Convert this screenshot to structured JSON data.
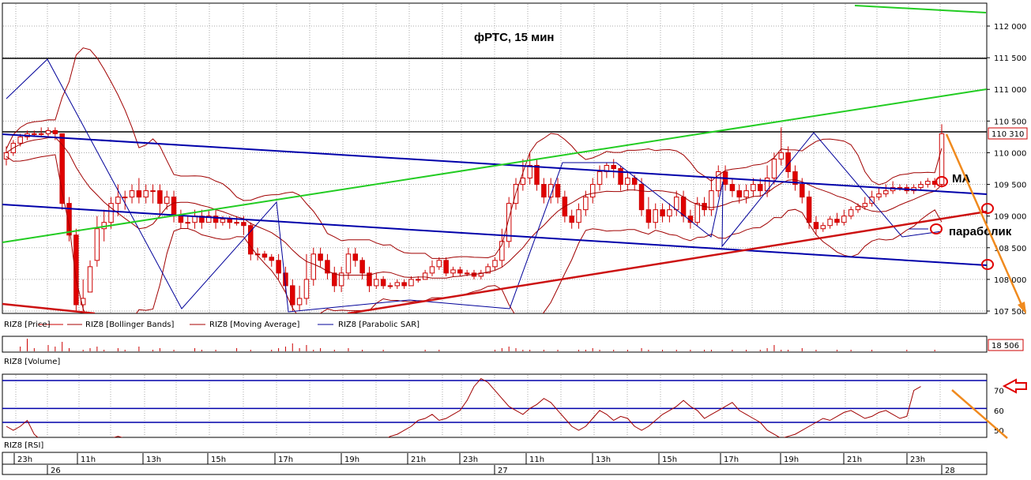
{
  "chart_data": {
    "type": "candlestick",
    "title": "фРТС, 15 мин",
    "price_panel": {
      "ylim": [
        107500,
        112250
      ],
      "y_ticks": [
        "112 000",
        "111 500",
        "111 000",
        "110 500",
        "110 000",
        "109 500",
        "109 000",
        "108 500",
        "108 000",
        "107 500"
      ],
      "last_price_label": "110 310",
      "legend": [
        {
          "name": "RIZ8 [Price]",
          "color": "#cc0000"
        },
        {
          "name": "RIZ8 [Bollinger Bands]",
          "color": "#a00000"
        },
        {
          "name": "RIZ8 [Moving Average]",
          "color": "#a00000"
        },
        {
          "name": "RIZ8 [Parabolic SAR]",
          "color": "#000099"
        }
      ],
      "horizontal_levels": [
        111490,
        110330
      ],
      "candles": [
        [
          109.9,
          110.0,
          109.8,
          110.1
        ],
        [
          110.0,
          110.15,
          109.95,
          110.2
        ],
        [
          110.15,
          110.25,
          110.1,
          110.3
        ],
        [
          110.25,
          110.3,
          110.2,
          110.35
        ],
        [
          110.3,
          110.3,
          110.25,
          110.35
        ],
        [
          110.3,
          110.3,
          110.25,
          110.4
        ],
        [
          110.3,
          110.35,
          110.25,
          110.4
        ],
        [
          110.35,
          110.3,
          110.2,
          110.4
        ],
        [
          110.3,
          109.2,
          109.1,
          110.3
        ],
        [
          109.2,
          108.7,
          108.6,
          109.3
        ],
        [
          108.7,
          107.6,
          107.5,
          108.8
        ],
        [
          107.6,
          107.7,
          107.5,
          108.0
        ],
        [
          107.8,
          108.2,
          107.8,
          108.3
        ],
        [
          108.3,
          108.8,
          108.2,
          109.0
        ],
        [
          108.8,
          108.9,
          108.6,
          109.1
        ],
        [
          108.9,
          109.2,
          108.8,
          109.3
        ],
        [
          109.2,
          109.3,
          109.0,
          109.5
        ],
        [
          109.3,
          109.3,
          109.1,
          109.4
        ],
        [
          109.3,
          109.4,
          109.2,
          109.5
        ],
        [
          109.4,
          109.3,
          109.2,
          109.6
        ],
        [
          109.3,
          109.4,
          109.2,
          109.5
        ],
        [
          109.4,
          109.4,
          109.2,
          109.5
        ],
        [
          109.4,
          109.2,
          109.0,
          109.5
        ],
        [
          109.2,
          109.3,
          109.1,
          109.4
        ],
        [
          109.3,
          109.0,
          108.9,
          109.4
        ],
        [
          109.0,
          108.9,
          108.8,
          109.1
        ],
        [
          108.9,
          108.9,
          108.8,
          109.0
        ],
        [
          108.9,
          109.0,
          108.8,
          109.1
        ],
        [
          109.0,
          108.9,
          108.8,
          109.1
        ],
        [
          108.9,
          109.0,
          108.9,
          109.1
        ],
        [
          109.0,
          108.9,
          108.8,
          109.1
        ],
        [
          108.9,
          108.95,
          108.85,
          109.0
        ],
        [
          108.95,
          108.9,
          108.8,
          109.0
        ],
        [
          108.9,
          108.9,
          108.85,
          109.0
        ],
        [
          108.9,
          108.85,
          108.7,
          109.0
        ],
        [
          108.85,
          108.4,
          108.3,
          108.9
        ],
        [
          108.4,
          108.4,
          108.3,
          108.5
        ],
        [
          108.4,
          108.35,
          108.3,
          108.45
        ],
        [
          108.35,
          108.3,
          108.2,
          108.4
        ],
        [
          108.3,
          108.1,
          108.0,
          108.4
        ],
        [
          108.1,
          107.9,
          107.8,
          108.2
        ],
        [
          107.9,
          107.6,
          107.5,
          108.0
        ],
        [
          107.6,
          107.7,
          107.5,
          107.9
        ],
        [
          107.7,
          108.0,
          107.6,
          108.4
        ],
        [
          108.0,
          108.4,
          107.9,
          108.5
        ],
        [
          108.4,
          108.3,
          108.2,
          108.5
        ],
        [
          108.3,
          108.1,
          108.0,
          108.4
        ],
        [
          108.1,
          107.9,
          107.8,
          108.2
        ],
        [
          107.9,
          108.1,
          107.8,
          108.2
        ],
        [
          108.1,
          108.4,
          108.0,
          108.5
        ],
        [
          108.4,
          108.3,
          108.2,
          108.5
        ],
        [
          108.3,
          108.1,
          108.0,
          108.35
        ],
        [
          108.1,
          107.9,
          107.8,
          108.2
        ],
        [
          107.9,
          108.0,
          107.85,
          108.1
        ],
        [
          108.0,
          107.9,
          107.85,
          108.05
        ],
        [
          107.9,
          107.9,
          107.85,
          107.95
        ],
        [
          107.9,
          107.95,
          107.85,
          108.0
        ],
        [
          107.95,
          107.9,
          107.85,
          108.0
        ],
        [
          107.9,
          108.0,
          107.9,
          108.05
        ],
        [
          108.0,
          108.0,
          107.95,
          108.05
        ],
        [
          108.0,
          108.1,
          108.0,
          108.15
        ],
        [
          108.1,
          108.2,
          108.05,
          108.3
        ],
        [
          108.2,
          108.3,
          108.15,
          108.35
        ],
        [
          108.3,
          108.1,
          108.05,
          108.35
        ],
        [
          108.1,
          108.15,
          108.05,
          108.2
        ],
        [
          108.15,
          108.1,
          108.05,
          108.2
        ],
        [
          108.1,
          108.1,
          108.05,
          108.15
        ],
        [
          108.1,
          108.05,
          108.0,
          108.15
        ],
        [
          108.05,
          108.1,
          108.0,
          108.15
        ],
        [
          108.1,
          108.2,
          108.1,
          108.25
        ],
        [
          108.2,
          108.3,
          108.15,
          108.35
        ],
        [
          108.3,
          108.6,
          108.2,
          108.8
        ],
        [
          108.6,
          109.2,
          108.5,
          109.3
        ],
        [
          109.2,
          109.5,
          109.1,
          109.6
        ],
        [
          109.5,
          109.6,
          109.4,
          109.9
        ],
        [
          109.6,
          109.8,
          109.5,
          110.0
        ],
        [
          109.8,
          109.5,
          109.4,
          109.9
        ],
        [
          109.5,
          109.3,
          109.2,
          109.6
        ],
        [
          109.3,
          109.5,
          109.2,
          109.6
        ],
        [
          109.5,
          109.3,
          109.2,
          109.6
        ],
        [
          109.3,
          109.0,
          108.9,
          109.4
        ],
        [
          109.0,
          108.9,
          108.8,
          109.1
        ],
        [
          108.9,
          109.1,
          108.8,
          109.2
        ],
        [
          109.1,
          109.3,
          109.0,
          109.4
        ],
        [
          109.3,
          109.5,
          109.2,
          109.6
        ],
        [
          109.5,
          109.7,
          109.4,
          109.8
        ],
        [
          109.7,
          109.8,
          109.6,
          109.85
        ],
        [
          109.8,
          109.75,
          109.6,
          109.9
        ],
        [
          109.75,
          109.5,
          109.4,
          109.8
        ],
        [
          109.5,
          109.6,
          109.4,
          109.7
        ],
        [
          109.6,
          109.5,
          109.4,
          109.65
        ],
        [
          109.5,
          109.1,
          109.0,
          109.6
        ],
        [
          109.1,
          108.9,
          108.8,
          109.3
        ],
        [
          108.9,
          109.1,
          108.8,
          109.2
        ],
        [
          109.1,
          109.0,
          108.9,
          109.2
        ],
        [
          109.0,
          109.1,
          108.9,
          109.2
        ],
        [
          109.1,
          109.3,
          109.0,
          109.4
        ],
        [
          109.3,
          109.0,
          108.9,
          109.4
        ],
        [
          109.0,
          108.9,
          108.8,
          109.1
        ],
        [
          108.9,
          109.2,
          108.85,
          109.3
        ],
        [
          109.2,
          109.1,
          109.0,
          109.3
        ],
        [
          109.1,
          109.4,
          109.0,
          109.6
        ],
        [
          109.4,
          109.7,
          109.3,
          109.8
        ],
        [
          109.7,
          109.5,
          109.4,
          109.8
        ],
        [
          109.5,
          109.4,
          109.3,
          109.6
        ],
        [
          109.4,
          109.3,
          109.2,
          109.5
        ],
        [
          109.3,
          109.4,
          109.2,
          109.5
        ],
        [
          109.4,
          109.5,
          109.3,
          109.6
        ],
        [
          109.5,
          109.4,
          109.3,
          109.6
        ],
        [
          109.4,
          109.6,
          109.3,
          109.8
        ],
        [
          109.6,
          109.9,
          109.5,
          110.0
        ],
        [
          109.9,
          110.0,
          109.8,
          110.4
        ],
        [
          110.0,
          109.7,
          109.6,
          110.1
        ],
        [
          109.7,
          109.5,
          109.4,
          109.8
        ],
        [
          109.5,
          109.3,
          109.2,
          109.6
        ],
        [
          109.3,
          108.9,
          108.8,
          109.4
        ],
        [
          108.9,
          108.8,
          108.7,
          109.0
        ],
        [
          108.8,
          108.85,
          108.75,
          108.9
        ],
        [
          108.85,
          108.95,
          108.8,
          109.0
        ],
        [
          108.95,
          108.9,
          108.85,
          109.05
        ],
        [
          108.9,
          109.0,
          108.85,
          109.1
        ],
        [
          109.0,
          109.1,
          108.95,
          109.15
        ],
        [
          109.1,
          109.15,
          109.05,
          109.2
        ],
        [
          109.15,
          109.2,
          109.1,
          109.3
        ],
        [
          109.2,
          109.3,
          109.15,
          109.4
        ],
        [
          109.3,
          109.35,
          109.25,
          109.45
        ],
        [
          109.35,
          109.4,
          109.3,
          109.5
        ],
        [
          109.4,
          109.45,
          109.35,
          109.55
        ],
        [
          109.45,
          109.45,
          109.4,
          109.5
        ],
        [
          109.45,
          109.4,
          109.35,
          109.5
        ],
        [
          109.4,
          109.45,
          109.35,
          109.5
        ],
        [
          109.45,
          109.5,
          109.4,
          109.55
        ],
        [
          109.5,
          109.55,
          109.45,
          109.6
        ],
        [
          109.55,
          109.5,
          109.45,
          109.6
        ],
        [
          109.5,
          110.3,
          109.45,
          110.45
        ]
      ]
    },
    "volume_panel": {
      "legend": "RIZ8 [Volume]",
      "last_label": "18 506"
    },
    "rsi_panel": {
      "legend": "RIZ8 [RSI]",
      "y_ticks": [
        "70",
        "60",
        "50"
      ],
      "levels": [
        75,
        61,
        54
      ]
    },
    "time_axis": {
      "hours": [
        "23h",
        "11h",
        "13h",
        "15h",
        "17h",
        "19h",
        "21h",
        "23h",
        "11h",
        "13h",
        "15h",
        "17h",
        "19h",
        "21h",
        "23h"
      ],
      "days": [
        "26",
        "27",
        "28"
      ]
    },
    "annotations": {
      "ma": "MA",
      "parabolic": "параболик"
    }
  }
}
